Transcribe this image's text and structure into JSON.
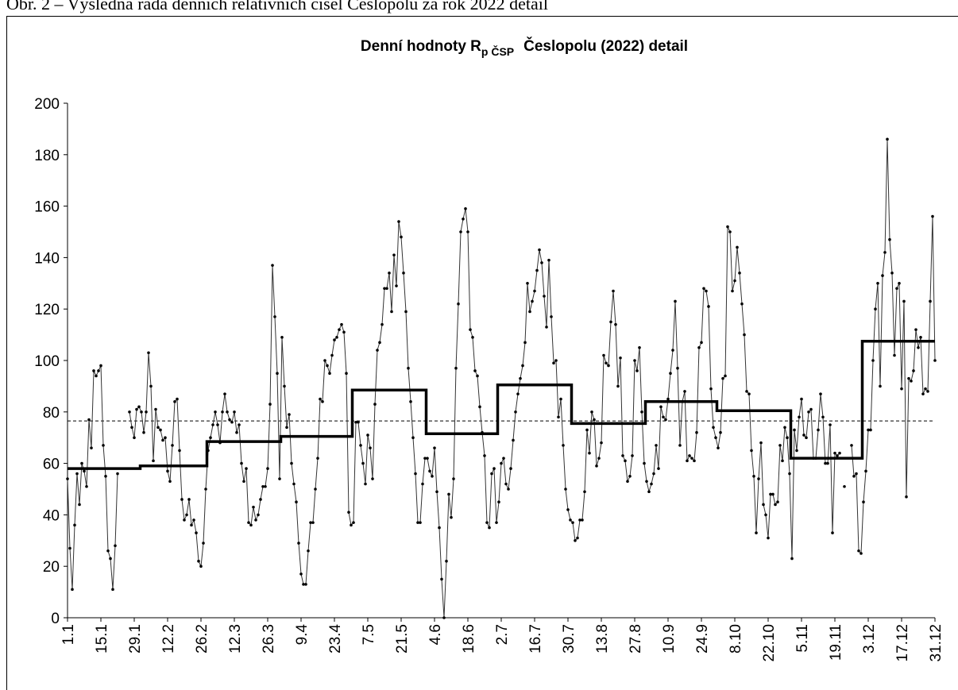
{
  "caption": "Obr. 2 – Výsledná řada denních relativních čísel Česlopolu za rok 2022 detail",
  "chart_data": {
    "type": "line",
    "title": {
      "main": "Denní hodnoty R",
      "sub": "p ČSP",
      "rest": "Česlopolu (2022) detail"
    },
    "categories": [
      "1.1",
      null,
      null,
      null,
      null,
      null,
      null,
      null,
      null,
      null,
      null,
      null,
      null,
      null,
      "15.1",
      null,
      null,
      null,
      null,
      null,
      null,
      null,
      null,
      null,
      null,
      null,
      null,
      null,
      "29.1",
      null,
      null,
      null,
      null,
      null,
      null,
      null,
      null,
      null,
      null,
      null,
      null,
      null,
      "12.2",
      null,
      null,
      null,
      null,
      null,
      null,
      null,
      null,
      null,
      null,
      null,
      null,
      null,
      "26.2",
      null,
      null,
      null,
      null,
      null,
      null,
      null,
      null,
      null,
      null,
      null,
      null,
      null,
      "12.3",
      null,
      null,
      null,
      null,
      null,
      null,
      null,
      null,
      null,
      null,
      null,
      null,
      null,
      "26.3",
      null,
      null,
      null,
      null,
      null,
      null,
      null,
      null,
      null,
      null,
      null,
      null,
      null,
      "9.4",
      null,
      null,
      null,
      null,
      null,
      null,
      null,
      null,
      null,
      null,
      null,
      null,
      null,
      "23.4",
      null,
      null,
      null,
      null,
      null,
      null,
      null,
      null,
      null,
      null,
      null,
      null,
      null,
      "7.5",
      null,
      null,
      null,
      null,
      null,
      null,
      null,
      null,
      null,
      null,
      null,
      null,
      null,
      "21.5",
      null,
      null,
      null,
      null,
      null,
      null,
      null,
      null,
      null,
      null,
      null,
      null,
      null,
      "4.6",
      null,
      null,
      null,
      null,
      null,
      null,
      null,
      null,
      null,
      null,
      null,
      null,
      null,
      "18.6",
      null,
      null,
      null,
      null,
      null,
      null,
      null,
      null,
      null,
      null,
      null,
      null,
      null,
      "2.7",
      null,
      null,
      null,
      null,
      null,
      null,
      null,
      null,
      null,
      null,
      null,
      null,
      null,
      "16.7",
      null,
      null,
      null,
      null,
      null,
      null,
      null,
      null,
      null,
      null,
      null,
      null,
      null,
      "30.7",
      null,
      null,
      null,
      null,
      null,
      null,
      null,
      null,
      null,
      null,
      null,
      null,
      null,
      "13.8",
      null,
      null,
      null,
      null,
      null,
      null,
      null,
      null,
      null,
      null,
      null,
      null,
      null,
      "27.8",
      null,
      null,
      null,
      null,
      null,
      null,
      null,
      null,
      null,
      null,
      null,
      null,
      null,
      "10.9",
      null,
      null,
      null,
      null,
      null,
      null,
      null,
      null,
      null,
      null,
      null,
      null,
      null,
      "24.9",
      null,
      null,
      null,
      null,
      null,
      null,
      null,
      null,
      null,
      null,
      null,
      null,
      null,
      "8.10",
      null,
      null,
      null,
      null,
      null,
      null,
      null,
      null,
      null,
      null,
      null,
      null,
      null,
      "22.10",
      null,
      null,
      null,
      null,
      null,
      null,
      null,
      null,
      null,
      null,
      null,
      null,
      null,
      "5.11",
      null,
      null,
      null,
      null,
      null,
      null,
      null,
      null,
      null,
      null,
      null,
      null,
      null,
      "19.11",
      null,
      null,
      null,
      null,
      null,
      null,
      null,
      null,
      null,
      null,
      null,
      null,
      null,
      "3.12",
      null,
      null,
      null,
      null,
      null,
      null,
      null,
      null,
      null,
      null,
      null,
      null,
      null,
      "17.12",
      null,
      null,
      null,
      null,
      null,
      null,
      null,
      null,
      null,
      null,
      null,
      null,
      null,
      "31.12"
    ],
    "values": [
      54,
      27,
      11,
      36,
      56,
      44,
      60,
      57,
      51,
      77,
      66,
      96,
      94,
      96,
      98,
      67,
      55,
      26,
      23,
      11,
      28,
      56,
      null,
      null,
      null,
      null,
      80,
      74,
      70,
      81,
      82,
      80,
      72,
      80,
      103,
      90,
      61,
      81,
      74,
      73,
      69,
      70,
      57,
      53,
      67,
      84,
      85,
      65,
      46,
      38,
      40,
      46,
      36,
      38,
      33,
      22,
      20,
      29,
      50,
      65,
      70,
      75,
      80,
      75,
      68,
      80,
      87,
      80,
      77,
      76,
      80,
      72,
      75,
      60,
      53,
      58,
      37,
      36,
      43,
      38,
      40,
      46,
      51,
      51,
      58,
      83,
      137,
      117,
      95,
      54,
      109,
      90,
      74,
      79,
      60,
      52,
      45,
      29,
      17,
      13,
      13,
      26,
      37,
      37,
      50,
      62,
      85,
      84,
      100,
      98,
      95,
      102,
      108,
      109,
      112,
      114,
      111,
      95,
      41,
      36,
      37,
      76,
      76,
      67,
      60,
      52,
      71,
      66,
      54,
      83,
      104,
      107,
      114,
      128,
      128,
      134,
      119,
      141,
      129,
      154,
      148,
      134,
      119,
      97,
      84,
      70,
      56,
      37,
      37,
      52,
      62,
      62,
      57,
      55,
      66,
      49,
      35,
      15,
      0,
      22,
      48,
      39,
      54,
      97,
      122,
      150,
      155,
      159,
      150,
      112,
      109,
      96,
      94,
      82,
      72,
      63,
      37,
      35,
      56,
      58,
      37,
      45,
      60,
      62,
      52,
      50,
      58,
      69,
      80,
      87,
      93,
      98,
      107,
      130,
      119,
      123,
      127,
      135,
      143,
      138,
      125,
      113,
      139,
      117,
      99,
      100,
      78,
      85,
      67,
      50,
      42,
      38,
      37,
      30,
      31,
      38,
      38,
      49,
      73,
      64,
      80,
      77,
      59,
      62,
      68,
      102,
      99,
      98,
      115,
      127,
      114,
      90,
      101,
      63,
      61,
      53,
      55,
      63,
      100,
      96,
      105,
      80,
      60,
      53,
      49,
      52,
      56,
      67,
      58,
      82,
      78,
      77,
      85,
      95,
      104,
      123,
      97,
      67,
      84,
      88,
      61,
      63,
      62,
      61,
      72,
      105,
      107,
      128,
      127,
      121,
      89,
      74,
      70,
      66,
      72,
      93,
      94,
      152,
      150,
      127,
      131,
      144,
      134,
      122,
      110,
      88,
      87,
      65,
      55,
      33,
      54,
      68,
      44,
      40,
      31,
      48,
      48,
      44,
      45,
      67,
      61,
      74,
      70,
      56,
      23,
      73,
      65,
      78,
      85,
      71,
      70,
      80,
      81,
      62,
      62,
      73,
      87,
      78,
      60,
      60,
      75,
      33,
      64,
      63,
      64,
      null,
      51,
      null,
      null,
      67,
      55,
      56,
      26,
      25,
      45,
      57,
      73,
      73,
      100,
      120,
      130,
      90,
      133,
      142,
      186,
      147,
      134,
      102,
      128,
      130,
      89,
      123,
      47,
      93,
      92,
      96,
      112,
      105,
      109,
      87,
      89,
      88,
      123,
      156,
      100
    ],
    "monthly_means": [
      58,
      59,
      68.5,
      70.5,
      88.5,
      71.5,
      90.5,
      75.5,
      84,
      80.5,
      62,
      107.5
    ],
    "annual_mean": 76.5,
    "color": "#333333",
    "mean_color": "#000000",
    "ylim": [
      0,
      200
    ],
    "yticks": [
      0,
      20,
      40,
      60,
      80,
      100,
      120,
      140,
      160,
      180,
      200
    ]
  }
}
